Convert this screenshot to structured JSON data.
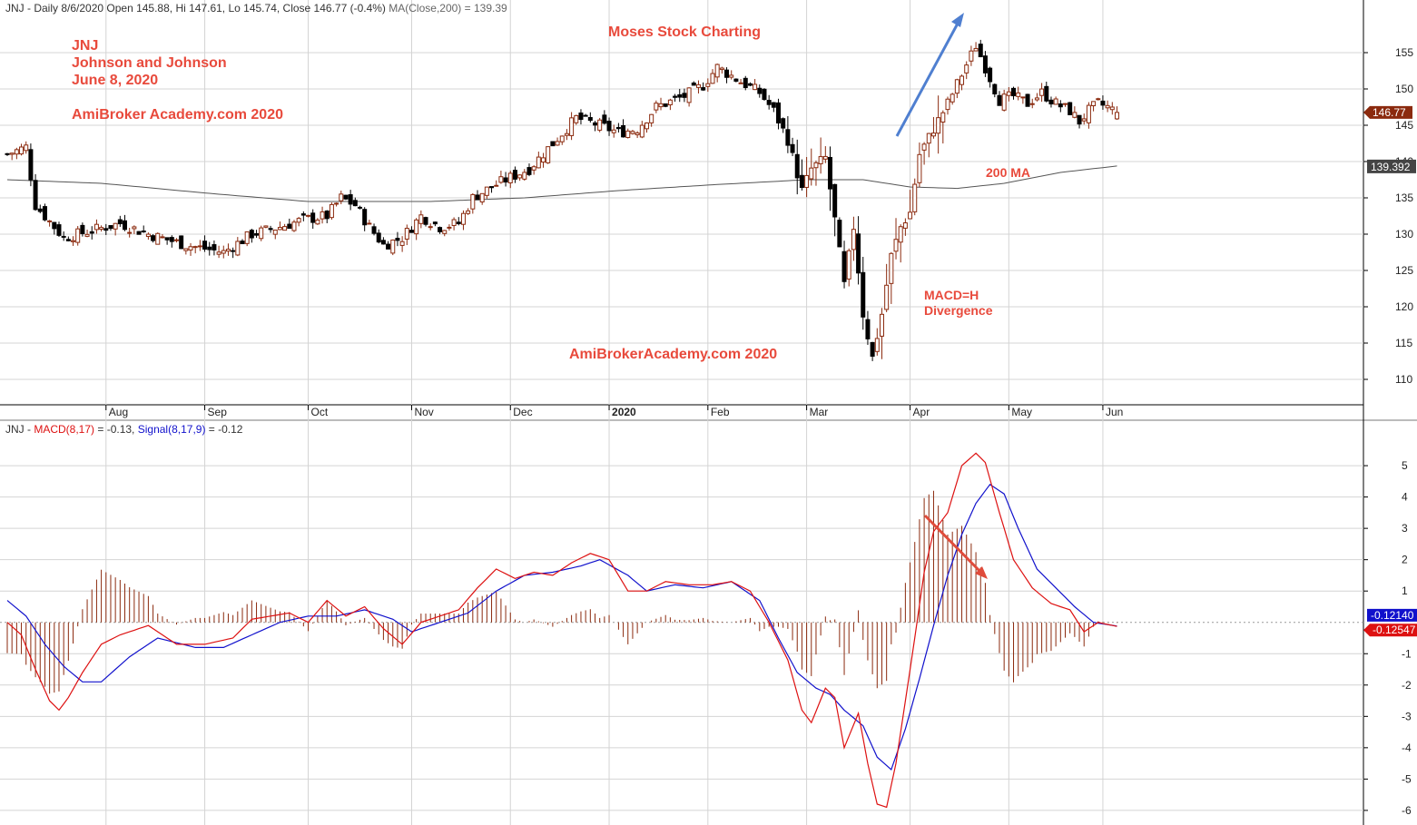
{
  "price_panel": {
    "header_main": "JNJ - Daily 8/6/2020 Open 145.88, Hi 147.61, Lo 145.74, Close 146.77 (-0.4%)",
    "header_ma": "MA(Close,200) = 139.39",
    "annotations": {
      "ticker": "JNJ",
      "company": "Johnson and Johnson",
      "date": "June 8, 2020",
      "brand_top": "AmiBroker Academy.com  2020",
      "center_title": "Moses Stock Charting",
      "brand_center": "AmiBrokerAcademy.com   2020",
      "ma_label": "200 MA",
      "macd_line1": "MACD=H",
      "macd_line2": "Divergence"
    },
    "last_close_label": "146.77",
    "ma_value_label": "139.392"
  },
  "macd_panel": {
    "header_prefix": "JNJ - ",
    "header_macd": "MACD(8,17)",
    "header_macd_val": " = -0.13, ",
    "header_signal": "Signal(8,17,9)",
    "header_signal_val": " = -0.12",
    "signal_value_label": "-0.12140",
    "macd_value_label": "-0.12547"
  },
  "colors": {
    "up_candle": "#8b2a0e",
    "down_candle": "#000000",
    "ma_line": "#555555",
    "macd_line": "#dd1111",
    "signal_line": "#1111cc",
    "histogram": "#8b2a0e",
    "annotation": "#e84a3c",
    "blue_arrow": "#4f7fd0",
    "red_arrow": "#e04b3b",
    "grid": "#d4d4d4"
  },
  "chart_data": [
    {
      "type": "candlestick",
      "title": "JNJ - Daily 8/6/2020",
      "ohlc_last": {
        "open": 145.88,
        "high": 147.61,
        "low": 145.74,
        "close": 146.77
      },
      "ylim": [
        107.5,
        158.5
      ],
      "y_ticks": [
        110,
        115,
        120,
        125,
        130,
        135,
        140,
        145,
        150,
        155
      ],
      "x_ticks": [
        "Aug",
        "Sep",
        "Oct",
        "Nov",
        "Dec",
        "2020",
        "Feb",
        "Mar",
        "Apr",
        "May",
        "Jun"
      ],
      "x_tick_index": [
        21,
        42,
        64,
        86,
        107,
        128,
        149,
        170,
        192,
        213,
        233
      ],
      "n_bars": 237,
      "close_waypoints": [
        [
          0,
          141
        ],
        [
          4,
          142
        ],
        [
          6,
          134
        ],
        [
          12,
          129.5
        ],
        [
          18,
          130.5
        ],
        [
          24,
          131.5
        ],
        [
          30,
          130
        ],
        [
          38,
          128.5
        ],
        [
          46,
          127.5
        ],
        [
          52,
          130
        ],
        [
          58,
          131
        ],
        [
          63,
          132
        ],
        [
          68,
          132.5
        ],
        [
          71,
          135
        ],
        [
          74,
          134
        ],
        [
          77,
          131
        ],
        [
          80,
          128.5
        ],
        [
          84,
          129.5
        ],
        [
          88,
          132.5
        ],
        [
          92,
          131
        ],
        [
          96,
          131.5
        ],
        [
          99,
          135
        ],
        [
          103,
          136.5
        ],
        [
          106,
          137.5
        ],
        [
          111,
          139
        ],
        [
          116,
          142.5
        ],
        [
          121,
          146
        ],
        [
          126,
          145
        ],
        [
          130,
          144
        ],
        [
          134,
          144.5
        ],
        [
          138,
          147.5
        ],
        [
          144,
          149
        ],
        [
          148,
          150.5
        ],
        [
          151,
          153
        ],
        [
          156,
          151
        ],
        [
          160,
          149.5
        ],
        [
          163,
          147
        ],
        [
          166,
          143
        ],
        [
          169,
          136
        ],
        [
          171,
          139
        ],
        [
          174,
          140.5
        ],
        [
          176,
          132
        ],
        [
          178,
          123
        ],
        [
          180,
          131
        ],
        [
          182,
          119
        ],
        [
          184,
          113
        ],
        [
          186,
          119
        ],
        [
          188,
          127
        ],
        [
          190,
          131
        ],
        [
          192,
          133
        ],
        [
          194,
          141
        ],
        [
          197,
          144.5
        ],
        [
          200,
          148
        ],
        [
          203,
          152
        ],
        [
          206,
          156
        ],
        [
          208,
          153
        ],
        [
          211,
          148.5
        ],
        [
          214,
          149
        ],
        [
          217,
          148
        ],
        [
          220,
          149.5
        ],
        [
          223,
          148
        ],
        [
          226,
          147
        ],
        [
          228,
          145.5
        ],
        [
          230,
          147
        ],
        [
          232,
          148
        ],
        [
          234,
          147.5
        ],
        [
          236,
          146.77
        ]
      ],
      "ma200_waypoints": [
        [
          0,
          137.5
        ],
        [
          20,
          137
        ],
        [
          45,
          135.5
        ],
        [
          64,
          134.5
        ],
        [
          90,
          134.5
        ],
        [
          110,
          135
        ],
        [
          130,
          136
        ],
        [
          150,
          136.8
        ],
        [
          170,
          137.5
        ],
        [
          182,
          137.5
        ],
        [
          192,
          136.5
        ],
        [
          202,
          136.3
        ],
        [
          212,
          137
        ],
        [
          224,
          138.5
        ],
        [
          236,
          139.39
        ]
      ],
      "ma200_last": 139.39,
      "series": [
        {
          "name": "JNJ"
        },
        {
          "name": "MA(Close,200)",
          "values_last": 139.39
        }
      ]
    },
    {
      "type": "line",
      "title": "JNJ - MACD(8,17) = -0.13, Signal(8,17,9) = -0.12",
      "ylim": [
        -6.35,
        5.9
      ],
      "y_ticks": [
        -6,
        -5,
        -4,
        -3,
        -2,
        -1,
        1,
        2,
        3,
        4,
        5
      ],
      "n_bars": 237,
      "series": [
        {
          "name": "MACD(8,17)",
          "last": -0.13,
          "waypoints": [
            [
              0,
              0
            ],
            [
              3,
              -0.4
            ],
            [
              6,
              -1.5
            ],
            [
              9,
              -2.5
            ],
            [
              11,
              -2.8
            ],
            [
              13,
              -2.4
            ],
            [
              16,
              -1.6
            ],
            [
              20,
              -0.7
            ],
            [
              24,
              -0.4
            ],
            [
              30,
              -0.1
            ],
            [
              36,
              -0.7
            ],
            [
              42,
              -0.7
            ],
            [
              48,
              -0.5
            ],
            [
              52,
              0.1
            ],
            [
              56,
              0.2
            ],
            [
              60,
              0.3
            ],
            [
              64,
              0.0
            ],
            [
              68,
              0.7
            ],
            [
              72,
              0.2
            ],
            [
              76,
              0.5
            ],
            [
              80,
              -0.2
            ],
            [
              84,
              -0.7
            ],
            [
              88,
              0.0
            ],
            [
              92,
              0.2
            ],
            [
              96,
              0.4
            ],
            [
              100,
              1.1
            ],
            [
              104,
              1.7
            ],
            [
              108,
              1.4
            ],
            [
              112,
              1.6
            ],
            [
              116,
              1.5
            ],
            [
              120,
              1.9
            ],
            [
              124,
              2.2
            ],
            [
              128,
              2.0
            ],
            [
              132,
              1.0
            ],
            [
              136,
              1.0
            ],
            [
              140,
              1.3
            ],
            [
              145,
              1.2
            ],
            [
              150,
              1.2
            ],
            [
              154,
              1.3
            ],
            [
              158,
              1.0
            ],
            [
              162,
              0.0
            ],
            [
              166,
              -1.2
            ],
            [
              169,
              -2.8
            ],
            [
              171,
              -3.2
            ],
            [
              174,
              -2.1
            ],
            [
              176,
              -2.4
            ],
            [
              178,
              -4.0
            ],
            [
              181,
              -2.9
            ],
            [
              183,
              -4.5
            ],
            [
              185,
              -5.8
            ],
            [
              187,
              -5.9
            ],
            [
              189,
              -4.5
            ],
            [
              191,
              -2.5
            ],
            [
              193,
              -0.5
            ],
            [
              195,
              1.6
            ],
            [
              197,
              2.9
            ],
            [
              200,
              3.5
            ],
            [
              203,
              5.0
            ],
            [
              206,
              5.4
            ],
            [
              208,
              5.1
            ],
            [
              211,
              3.5
            ],
            [
              214,
              2.0
            ],
            [
              218,
              1.1
            ],
            [
              222,
              0.6
            ],
            [
              226,
              0.4
            ],
            [
              229,
              -0.3
            ],
            [
              232,
              0.0
            ],
            [
              236,
              -0.13
            ]
          ]
        },
        {
          "name": "Signal(8,17,9)",
          "last": -0.12,
          "waypoints": [
            [
              0,
              0.7
            ],
            [
              4,
              0.2
            ],
            [
              8,
              -0.7
            ],
            [
              12,
              -1.4
            ],
            [
              16,
              -1.9
            ],
            [
              20,
              -1.9
            ],
            [
              26,
              -1.1
            ],
            [
              32,
              -0.5
            ],
            [
              40,
              -0.8
            ],
            [
              46,
              -0.8
            ],
            [
              52,
              -0.4
            ],
            [
              58,
              0.0
            ],
            [
              64,
              0.2
            ],
            [
              70,
              0.2
            ],
            [
              76,
              0.4
            ],
            [
              82,
              0.1
            ],
            [
              86,
              -0.3
            ],
            [
              92,
              0.0
            ],
            [
              98,
              0.3
            ],
            [
              104,
              1.0
            ],
            [
              110,
              1.5
            ],
            [
              116,
              1.6
            ],
            [
              122,
              1.8
            ],
            [
              126,
              2.0
            ],
            [
              132,
              1.5
            ],
            [
              136,
              1.0
            ],
            [
              142,
              1.2
            ],
            [
              148,
              1.1
            ],
            [
              154,
              1.3
            ],
            [
              160,
              0.7
            ],
            [
              164,
              -0.5
            ],
            [
              168,
              -1.6
            ],
            [
              172,
              -2.1
            ],
            [
              175,
              -2.3
            ],
            [
              178,
              -2.8
            ],
            [
              182,
              -3.3
            ],
            [
              185,
              -4.3
            ],
            [
              188,
              -4.7
            ],
            [
              191,
              -3.4
            ],
            [
              194,
              -1.8
            ],
            [
              197,
              -0.1
            ],
            [
              200,
              1.5
            ],
            [
              203,
              2.8
            ],
            [
              206,
              3.8
            ],
            [
              209,
              4.4
            ],
            [
              212,
              4.1
            ],
            [
              215,
              3.0
            ],
            [
              219,
              1.7
            ],
            [
              223,
              1.1
            ],
            [
              227,
              0.5
            ],
            [
              231,
              0.0
            ],
            [
              236,
              -0.12
            ]
          ]
        }
      ]
    }
  ]
}
